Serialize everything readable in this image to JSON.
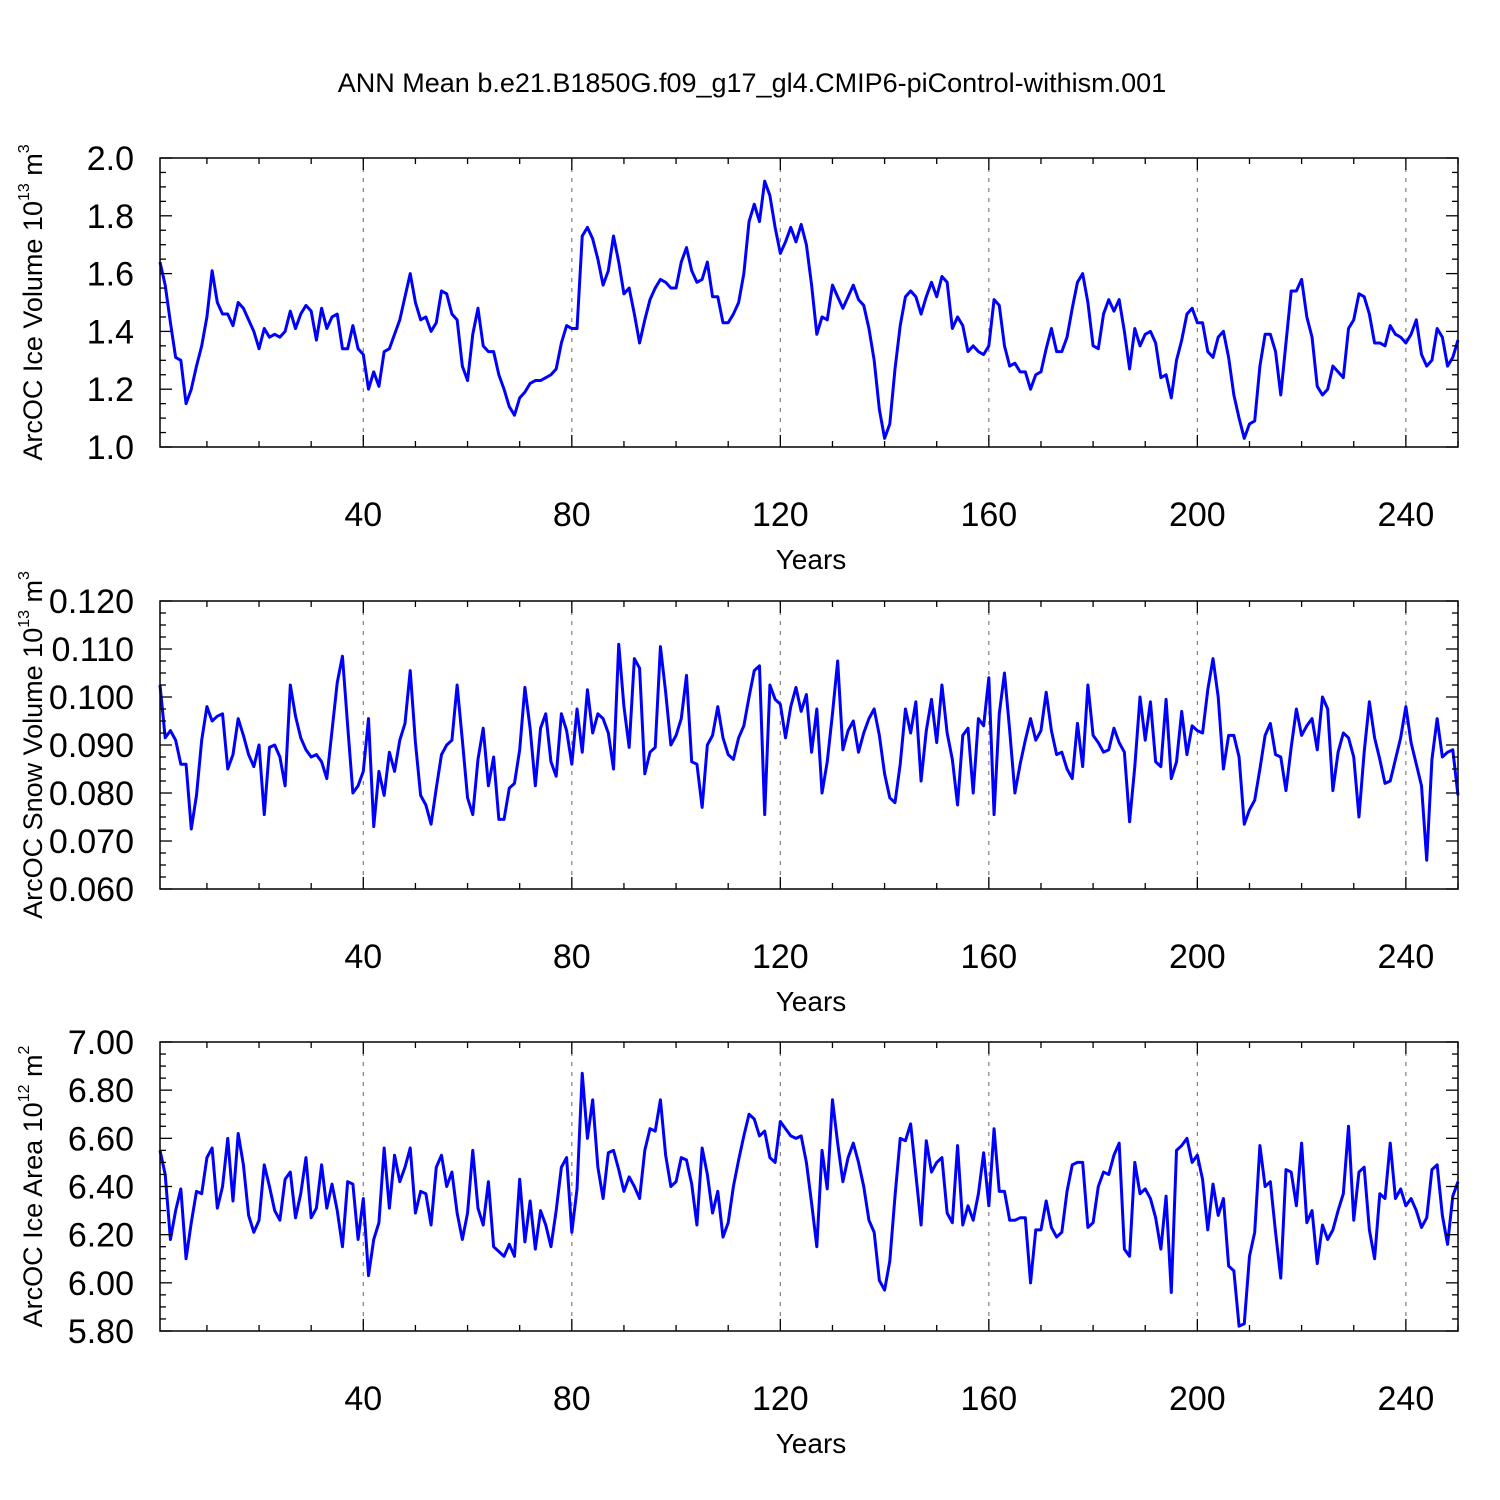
{
  "figure_title": "ANN Mean b.e21.B1850G.f09_g17_gl4.CMIP6-piControl-withism.001",
  "line_color": "#0000ff",
  "chart_data": [
    {
      "type": "line",
      "title": "ANN Mean b.e21.B1850G.f09_g17_gl4.CMIP6-piControl-withism.001",
      "xlabel": "Years",
      "ylabel": "ArcOC Ice Volume 10",
      "ylabel_exp": "13",
      "ylabel_unit": " m",
      "ylabel_unit_exp": "3",
      "xlim": [
        1,
        250
      ],
      "ylim": [
        1.0,
        2.0
      ],
      "x_ticks": [
        40,
        80,
        120,
        160,
        200,
        240
      ],
      "x_tick_labels": [
        "40",
        "80",
        "120",
        "160",
        "200",
        "240"
      ],
      "y_ticks": [
        1.0,
        1.2,
        1.4,
        1.6,
        1.8,
        2.0
      ],
      "y_tick_labels": [
        "1.0",
        "1.2",
        "1.4",
        "1.6",
        "1.8",
        "2.0"
      ],
      "y_minor_step": 0.05,
      "grid": "vertical dashed at major x ticks",
      "series": [
        {
          "name": "ArcOC Ice Volume",
          "x_start": 1,
          "values": [
            1.64,
            1.56,
            1.43,
            1.31,
            1.3,
            1.15,
            1.2,
            1.28,
            1.35,
            1.45,
            1.61,
            1.5,
            1.46,
            1.46,
            1.42,
            1.5,
            1.48,
            1.44,
            1.4,
            1.34,
            1.41,
            1.38,
            1.39,
            1.38,
            1.4,
            1.47,
            1.41,
            1.46,
            1.49,
            1.47,
            1.37,
            1.48,
            1.41,
            1.45,
            1.46,
            1.34,
            1.34,
            1.42,
            1.34,
            1.32,
            1.2,
            1.26,
            1.21,
            1.33,
            1.34,
            1.39,
            1.44,
            1.52,
            1.6,
            1.5,
            1.44,
            1.45,
            1.4,
            1.43,
            1.54,
            1.53,
            1.46,
            1.44,
            1.28,
            1.23,
            1.39,
            1.48,
            1.35,
            1.33,
            1.33,
            1.25,
            1.2,
            1.14,
            1.11,
            1.17,
            1.19,
            1.22,
            1.23,
            1.23,
            1.24,
            1.25,
            1.27,
            1.36,
            1.42,
            1.41,
            1.41,
            1.73,
            1.76,
            1.72,
            1.65,
            1.56,
            1.61,
            1.73,
            1.64,
            1.53,
            1.55,
            1.46,
            1.36,
            1.44,
            1.51,
            1.55,
            1.58,
            1.57,
            1.55,
            1.55,
            1.64,
            1.69,
            1.61,
            1.57,
            1.58,
            1.64,
            1.52,
            1.52,
            1.43,
            1.43,
            1.46,
            1.5,
            1.6,
            1.78,
            1.84,
            1.78,
            1.92,
            1.87,
            1.76,
            1.67,
            1.71,
            1.76,
            1.71,
            1.77,
            1.7,
            1.56,
            1.39,
            1.45,
            1.44,
            1.56,
            1.52,
            1.48,
            1.52,
            1.56,
            1.51,
            1.49,
            1.41,
            1.3,
            1.13,
            1.03,
            1.08,
            1.27,
            1.42,
            1.52,
            1.54,
            1.52,
            1.46,
            1.52,
            1.57,
            1.52,
            1.59,
            1.57,
            1.41,
            1.45,
            1.42,
            1.33,
            1.35,
            1.33,
            1.32,
            1.35,
            1.51,
            1.49,
            1.35,
            1.28,
            1.29,
            1.26,
            1.26,
            1.2,
            1.25,
            1.26,
            1.34,
            1.41,
            1.33,
            1.33,
            1.38,
            1.48,
            1.57,
            1.6,
            1.5,
            1.35,
            1.34,
            1.46,
            1.51,
            1.47,
            1.51,
            1.4,
            1.27,
            1.41,
            1.35,
            1.39,
            1.4,
            1.36,
            1.24,
            1.25,
            1.17,
            1.3,
            1.37,
            1.46,
            1.48,
            1.43,
            1.43,
            1.33,
            1.31,
            1.38,
            1.4,
            1.31,
            1.18,
            1.1,
            1.03,
            1.08,
            1.09,
            1.28,
            1.39,
            1.39,
            1.33,
            1.18,
            1.36,
            1.54,
            1.54,
            1.58,
            1.45,
            1.38,
            1.21,
            1.18,
            1.2,
            1.28,
            1.26,
            1.24,
            1.41,
            1.44,
            1.53,
            1.52,
            1.46,
            1.36,
            1.36,
            1.35,
            1.42,
            1.39,
            1.38,
            1.36,
            1.39,
            1.44,
            1.32,
            1.28,
            1.3,
            1.41,
            1.38,
            1.28,
            1.31,
            1.37
          ]
        }
      ]
    },
    {
      "type": "line",
      "xlabel": "Years",
      "ylabel": "ArcOC Snow Volume 10",
      "ylabel_exp": "13",
      "ylabel_unit": " m",
      "ylabel_unit_exp": "3",
      "xlim": [
        1,
        250
      ],
      "ylim": [
        0.06,
        0.12
      ],
      "x_ticks": [
        40,
        80,
        120,
        160,
        200,
        240
      ],
      "x_tick_labels": [
        "40",
        "80",
        "120",
        "160",
        "200",
        "240"
      ],
      "y_ticks": [
        0.06,
        0.07,
        0.08,
        0.09,
        0.1,
        0.11,
        0.12
      ],
      "y_tick_labels": [
        "0.060",
        "0.070",
        "0.080",
        "0.090",
        "0.100",
        "0.110",
        "0.120"
      ],
      "y_minor_step": 0.0025,
      "grid": "vertical dashed at major x ticks",
      "series": [
        {
          "name": "ArcOC Snow Volume",
          "x_start": 1,
          "values": [
            0.1025,
            0.0915,
            0.093,
            0.091,
            0.086,
            0.086,
            0.0725,
            0.0795,
            0.091,
            0.098,
            0.095,
            0.096,
            0.0965,
            0.085,
            0.088,
            0.0955,
            0.092,
            0.088,
            0.0855,
            0.09,
            0.0755,
            0.0895,
            0.09,
            0.0875,
            0.0815,
            0.1025,
            0.096,
            0.0915,
            0.089,
            0.0875,
            0.088,
            0.0865,
            0.083,
            0.093,
            0.103,
            0.1085,
            0.094,
            0.08,
            0.0815,
            0.0845,
            0.0955,
            0.073,
            0.0845,
            0.0795,
            0.0885,
            0.0845,
            0.091,
            0.0945,
            0.1055,
            0.0905,
            0.0795,
            0.0775,
            0.0735,
            0.081,
            0.088,
            0.09,
            0.091,
            0.1025,
            0.091,
            0.079,
            0.0755,
            0.087,
            0.0935,
            0.0815,
            0.0875,
            0.0745,
            0.0745,
            0.081,
            0.082,
            0.089,
            0.102,
            0.0935,
            0.0815,
            0.0935,
            0.0965,
            0.0865,
            0.0835,
            0.0965,
            0.093,
            0.086,
            0.0975,
            0.0885,
            0.1015,
            0.0925,
            0.0965,
            0.0955,
            0.0925,
            0.085,
            0.111,
            0.098,
            0.0895,
            0.108,
            0.106,
            0.084,
            0.0885,
            0.0895,
            0.1105,
            0.101,
            0.09,
            0.092,
            0.0955,
            0.1045,
            0.0865,
            0.086,
            0.077,
            0.09,
            0.092,
            0.098,
            0.0915,
            0.088,
            0.087,
            0.0915,
            0.094,
            0.1,
            0.1055,
            0.1065,
            0.0755,
            0.1025,
            0.0995,
            0.0985,
            0.0915,
            0.098,
            0.102,
            0.097,
            0.1005,
            0.0885,
            0.0975,
            0.08,
            0.0865,
            0.0965,
            0.1075,
            0.089,
            0.093,
            0.095,
            0.0885,
            0.0925,
            0.0955,
            0.0975,
            0.092,
            0.084,
            0.079,
            0.078,
            0.086,
            0.0975,
            0.0925,
            0.099,
            0.0825,
            0.093,
            0.0995,
            0.0905,
            0.1025,
            0.0925,
            0.087,
            0.0775,
            0.092,
            0.0935,
            0.08,
            0.0955,
            0.094,
            0.104,
            0.0755,
            0.0965,
            0.105,
            0.093,
            0.08,
            0.086,
            0.091,
            0.0955,
            0.091,
            0.093,
            0.101,
            0.093,
            0.088,
            0.0885,
            0.085,
            0.083,
            0.0945,
            0.0855,
            0.1025,
            0.092,
            0.0905,
            0.0885,
            0.089,
            0.0935,
            0.0905,
            0.0885,
            0.074,
            0.0855,
            0.1,
            0.091,
            0.099,
            0.0865,
            0.0855,
            0.0995,
            0.083,
            0.0865,
            0.097,
            0.088,
            0.094,
            0.093,
            0.0925,
            0.1015,
            0.108,
            0.1,
            0.085,
            0.092,
            0.092,
            0.0875,
            0.0735,
            0.0765,
            0.0785,
            0.085,
            0.092,
            0.0945,
            0.088,
            0.0875,
            0.0805,
            0.0895,
            0.0975,
            0.092,
            0.094,
            0.0955,
            0.089,
            0.1,
            0.0975,
            0.0805,
            0.0885,
            0.0925,
            0.0915,
            0.0875,
            0.075,
            0.0885,
            0.099,
            0.0915,
            0.087,
            0.082,
            0.0825,
            0.087,
            0.0915,
            0.098,
            0.0905,
            0.086,
            0.0815,
            0.066,
            0.087,
            0.0955,
            0.0875,
            0.0885,
            0.089,
            0.0795
          ]
        }
      ]
    },
    {
      "type": "line",
      "xlabel": "Years",
      "ylabel": "ArcOC Ice Area 10",
      "ylabel_exp": "12",
      "ylabel_unit": " m",
      "ylabel_unit_exp": "2",
      "xlim": [
        1,
        250
      ],
      "ylim": [
        5.8,
        7.0
      ],
      "x_ticks": [
        40,
        80,
        120,
        160,
        200,
        240
      ],
      "x_tick_labels": [
        "40",
        "80",
        "120",
        "160",
        "200",
        "240"
      ],
      "y_ticks": [
        5.8,
        6.0,
        6.2,
        6.4,
        6.6,
        6.8,
        7.0
      ],
      "y_tick_labels": [
        "5.80",
        "6.00",
        "6.20",
        "6.40",
        "6.60",
        "6.80",
        "7.00"
      ],
      "y_minor_step": 0.05,
      "grid": "vertical dashed at major x ticks",
      "series": [
        {
          "name": "ArcOC Ice Area",
          "x_start": 1,
          "values": [
            6.55,
            6.45,
            6.18,
            6.3,
            6.39,
            6.1,
            6.25,
            6.38,
            6.37,
            6.52,
            6.56,
            6.31,
            6.4,
            6.6,
            6.34,
            6.62,
            6.49,
            6.28,
            6.21,
            6.26,
            6.49,
            6.4,
            6.3,
            6.26,
            6.43,
            6.46,
            6.27,
            6.37,
            6.52,
            6.27,
            6.31,
            6.49,
            6.31,
            6.41,
            6.3,
            6.15,
            6.42,
            6.41,
            6.18,
            6.35,
            6.03,
            6.18,
            6.25,
            6.56,
            6.31,
            6.53,
            6.42,
            6.48,
            6.56,
            6.29,
            6.38,
            6.37,
            6.24,
            6.48,
            6.53,
            6.4,
            6.46,
            6.29,
            6.18,
            6.29,
            6.55,
            6.31,
            6.24,
            6.42,
            6.15,
            6.13,
            6.11,
            6.16,
            6.11,
            6.43,
            6.17,
            6.34,
            6.14,
            6.3,
            6.24,
            6.15,
            6.3,
            6.48,
            6.52,
            6.21,
            6.39,
            6.87,
            6.6,
            6.76,
            6.48,
            6.35,
            6.54,
            6.55,
            6.47,
            6.38,
            6.44,
            6.4,
            6.35,
            6.55,
            6.64,
            6.63,
            6.76,
            6.53,
            6.4,
            6.42,
            6.52,
            6.51,
            6.41,
            6.24,
            6.56,
            6.45,
            6.29,
            6.38,
            6.19,
            6.25,
            6.4,
            6.51,
            6.61,
            6.7,
            6.68,
            6.61,
            6.63,
            6.52,
            6.5,
            6.67,
            6.64,
            6.61,
            6.6,
            6.61,
            6.5,
            6.33,
            6.15,
            6.55,
            6.39,
            6.76,
            6.58,
            6.42,
            6.52,
            6.58,
            6.5,
            6.4,
            6.26,
            6.21,
            6.01,
            5.97,
            6.09,
            6.36,
            6.6,
            6.59,
            6.66,
            6.45,
            6.24,
            6.59,
            6.46,
            6.5,
            6.52,
            6.29,
            6.25,
            6.57,
            6.24,
            6.32,
            6.26,
            6.37,
            6.54,
            6.32,
            6.64,
            6.38,
            6.38,
            6.26,
            6.26,
            6.27,
            6.27,
            6.0,
            6.22,
            6.22,
            6.34,
            6.23,
            6.19,
            6.21,
            6.38,
            6.49,
            6.5,
            6.5,
            6.23,
            6.25,
            6.4,
            6.46,
            6.45,
            6.53,
            6.58,
            6.14,
            6.11,
            6.5,
            6.37,
            6.39,
            6.35,
            6.27,
            6.14,
            6.36,
            5.96,
            6.55,
            6.57,
            6.6,
            6.5,
            6.53,
            6.43,
            6.22,
            6.41,
            6.28,
            6.35,
            6.07,
            6.05,
            5.82,
            5.83,
            6.11,
            6.21,
            6.57,
            6.4,
            6.42,
            6.21,
            6.02,
            6.47,
            6.46,
            6.32,
            6.58,
            6.25,
            6.3,
            6.08,
            6.24,
            6.18,
            6.22,
            6.3,
            6.37,
            6.65,
            6.26,
            6.46,
            6.48,
            6.22,
            6.1,
            6.37,
            6.35,
            6.58,
            6.35,
            6.39,
            6.32,
            6.35,
            6.3,
            6.23,
            6.27,
            6.47,
            6.49,
            6.28,
            6.16,
            6.36,
            6.42
          ]
        }
      ]
    }
  ]
}
